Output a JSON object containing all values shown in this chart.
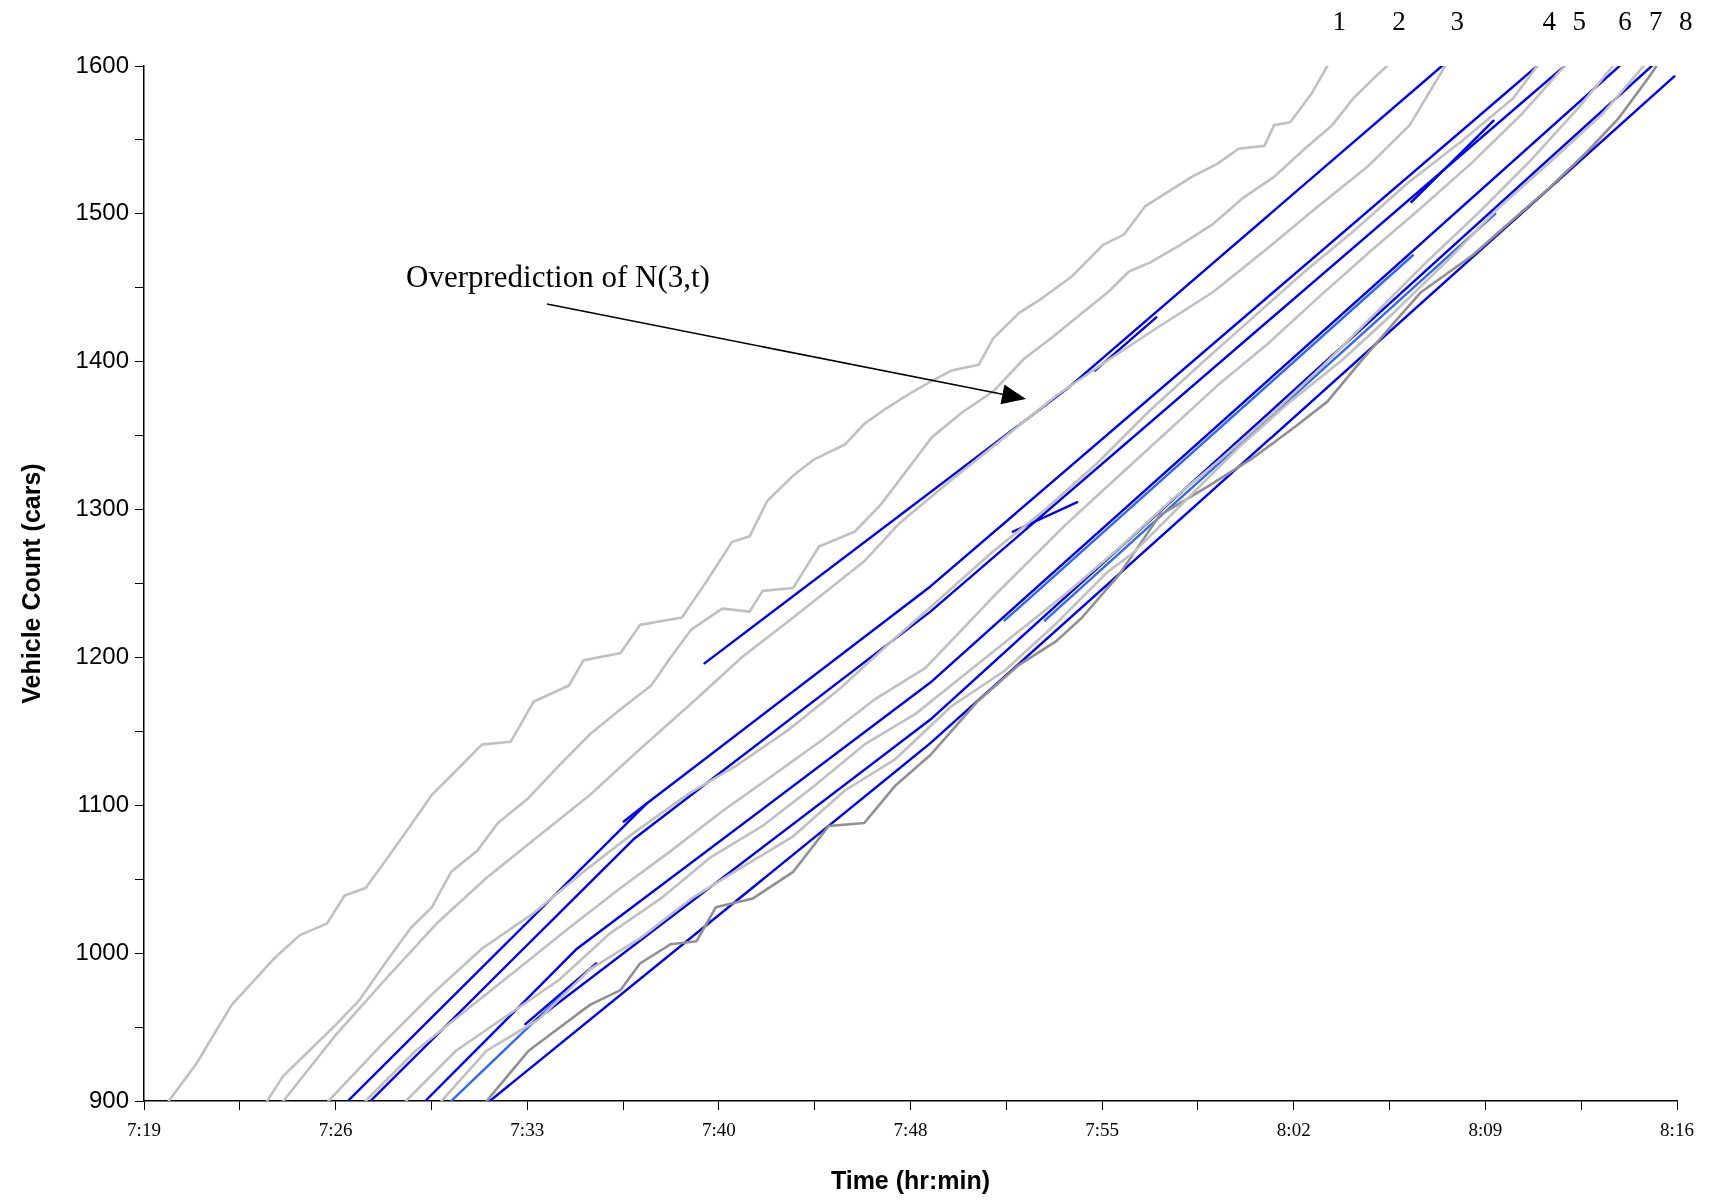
{
  "chart_data": {
    "type": "line",
    "xlabel": "Time (hr:min)",
    "ylabel": "Vehicle Count (cars)",
    "xlim": [
      7.31667,
      8.26667
    ],
    "xticks": [
      {
        "value": 7.31667,
        "label": "7:19"
      },
      {
        "value": 7.37604,
        "label": null
      },
      {
        "value": 7.43542,
        "label": "7:26"
      },
      {
        "value": 7.49479,
        "label": null
      },
      {
        "value": 7.55417,
        "label": "7:33"
      },
      {
        "value": 7.61354,
        "label": null
      },
      {
        "value": 7.67292,
        "label": "7:40"
      },
      {
        "value": 7.73229,
        "label": null
      },
      {
        "value": 7.79167,
        "label": "7:48"
      },
      {
        "value": 7.85104,
        "label": null
      },
      {
        "value": 7.91042,
        "label": "7:55"
      },
      {
        "value": 7.96979,
        "label": null
      },
      {
        "value": 8.02917,
        "label": "8:02"
      },
      {
        "value": 8.08854,
        "label": null
      },
      {
        "value": 8.14792,
        "label": "8:09"
      },
      {
        "value": 8.20729,
        "label": null
      },
      {
        "value": 8.26667,
        "label": "8:16"
      }
    ],
    "ylim": [
      900,
      1600
    ],
    "yticks": [
      900,
      {
        "value": 950,
        "label": null
      },
      1000,
      {
        "value": 1050,
        "label": null
      },
      1100,
      {
        "value": 1150,
        "label": null
      },
      1200,
      {
        "value": 1250,
        "label": null
      },
      1300,
      {
        "value": 1350,
        "label": null
      },
      1400,
      {
        "value": 1450,
        "label": null
      },
      1500,
      {
        "value": 1550,
        "label": null
      },
      1600
    ],
    "marker": "none",
    "annotations": [
      "Overprediction of N(3,t)"
    ],
    "series": [
      {
        "name": "1",
        "color": "#c0c0c0",
        "x": [
          7.332,
          7.349,
          7.371,
          7.397,
          7.413,
          7.43,
          7.441,
          7.454,
          7.466,
          7.479,
          7.495,
          7.507,
          7.526,
          7.544,
          7.558,
          7.58,
          7.589,
          7.612,
          7.624,
          7.65,
          7.665,
          7.681,
          7.692,
          7.703,
          7.719,
          7.732,
          7.751,
          7.763,
          7.776,
          7.792,
          7.805,
          7.817,
          7.834,
          7.843,
          7.859,
          7.872,
          7.892,
          7.911,
          7.924,
          7.937,
          7.95,
          7.966,
          7.982,
          7.995,
          8.011,
          8.017,
          8.027,
          8.04,
          8.05
        ],
        "values": [
          900,
          925,
          965,
          996,
          1012,
          1020,
          1039,
          1044,
          1062,
          1082,
          1107,
          1120,
          1141,
          1143,
          1170,
          1181,
          1198,
          1203,
          1222,
          1227,
          1251,
          1278,
          1282,
          1306,
          1323,
          1334,
          1344,
          1358,
          1368,
          1379,
          1387,
          1394,
          1398,
          1416,
          1433,
          1442,
          1458,
          1479,
          1486,
          1505,
          1514,
          1525,
          1534,
          1544,
          1546,
          1560,
          1562,
          1581,
          1600
        ]
      },
      {
        "name": "2",
        "color": "#c0c0c0",
        "x": [
          7.393,
          7.403,
          7.419,
          7.435,
          7.45,
          7.466,
          7.482,
          7.495,
          7.507,
          7.523,
          7.536,
          7.555,
          7.574,
          7.593,
          7.612,
          7.631,
          7.643,
          7.656,
          7.675,
          7.692,
          7.7,
          7.719,
          7.735,
          7.757,
          7.773,
          7.805,
          7.824,
          7.843,
          7.862,
          7.879,
          7.898,
          7.914,
          7.927,
          7.94,
          7.959,
          7.979,
          7.998,
          8.017,
          8.036,
          8.053,
          8.066,
          8.079,
          8.087
        ],
        "values": [
          900,
          917,
          934,
          951,
          968,
          993,
          1017,
          1031,
          1055,
          1069,
          1088,
          1105,
          1127,
          1148,
          1165,
          1181,
          1200,
          1219,
          1233,
          1231,
          1245,
          1247,
          1275,
          1285,
          1303,
          1349,
          1366,
          1380,
          1402,
          1416,
          1433,
          1447,
          1461,
          1467,
          1479,
          1493,
          1511,
          1525,
          1544,
          1560,
          1578,
          1592,
          1600
        ]
      },
      {
        "name": "3",
        "color": "#c0c0c0",
        "x": [
          7.403,
          7.435,
          7.466,
          7.498,
          7.529,
          7.561,
          7.593,
          7.624,
          7.656,
          7.687,
          7.719,
          7.763,
          7.785,
          7.817,
          7.85,
          7.882,
          7.914,
          7.946,
          7.979,
          8.011,
          8.043,
          8.075,
          8.101,
          8.123
        ],
        "values": [
          900,
          944,
          982,
          1020,
          1051,
          1079,
          1107,
          1138,
          1169,
          1200,
          1227,
          1265,
          1291,
          1320,
          1349,
          1377,
          1401,
          1424,
          1447,
          1475,
          1504,
          1532,
          1560,
          1600
        ]
      },
      {
        "name": "4",
        "color": "#c0c0c0",
        "x": [
          7.431,
          7.463,
          7.495,
          7.526,
          7.558,
          7.589,
          7.621,
          7.653,
          7.684,
          7.716,
          7.748,
          7.779,
          7.804,
          7.842,
          7.874,
          7.907,
          7.939,
          7.971,
          8.004,
          8.036,
          8.068,
          8.1,
          8.133,
          8.165,
          8.18
        ],
        "values": [
          900,
          937,
          972,
          1003,
          1027,
          1055,
          1082,
          1107,
          1127,
          1151,
          1179,
          1210,
          1234,
          1271,
          1299,
          1331,
          1366,
          1398,
          1430,
          1461,
          1490,
          1521,
          1549,
          1578,
          1600
        ]
      },
      {
        "name": "5",
        "color": "#c0c0c0",
        "x": [
          7.454,
          7.485,
          7.517,
          7.548,
          7.58,
          7.612,
          7.643,
          7.675,
          7.706,
          7.738,
          7.77,
          7.801,
          7.842,
          7.887,
          7.918,
          7.95,
          7.982,
          8.013,
          8.045,
          8.077,
          8.108,
          8.14,
          8.17,
          8.197
        ],
        "values": [
          900,
          934,
          962,
          989,
          1017,
          1044,
          1069,
          1096,
          1120,
          1145,
          1172,
          1193,
          1240,
          1289,
          1320,
          1352,
          1384,
          1412,
          1444,
          1475,
          1504,
          1535,
          1567,
          1600
        ]
      },
      {
        "name": "6",
        "color": "#c0c0c0",
        "x": [
          7.479,
          7.51,
          7.542,
          7.574,
          7.605,
          7.637,
          7.668,
          7.7,
          7.732,
          7.763,
          7.795,
          7.827,
          7.858,
          7.89,
          7.922,
          7.953,
          7.985,
          8.017,
          8.048,
          8.08,
          8.112,
          8.143,
          8.175,
          8.205,
          8.227
        ],
        "values": [
          900,
          934,
          958,
          982,
          1013,
          1037,
          1065,
          1086,
          1113,
          1141,
          1162,
          1190,
          1217,
          1245,
          1275,
          1306,
          1335,
          1366,
          1398,
          1433,
          1468,
          1500,
          1535,
          1571,
          1600
        ]
      },
      {
        "name": "7",
        "color": "#c0c0c0",
        "x": [
          7.501,
          7.529,
          7.561,
          7.593,
          7.624,
          7.656,
          7.687,
          7.719,
          7.751,
          7.782,
          7.817,
          7.85,
          7.882,
          7.914,
          7.93,
          7.962,
          7.995,
          8.027,
          8.059,
          8.091,
          8.124,
          8.156,
          8.188,
          8.22,
          8.246
        ],
        "values": [
          900,
          934,
          955,
          989,
          1010,
          1037,
          1058,
          1079,
          1110,
          1131,
          1167,
          1191,
          1223,
          1258,
          1271,
          1306,
          1342,
          1373,
          1401,
          1433,
          1468,
          1504,
          1535,
          1567,
          1600
        ]
      },
      {
        "name": "8",
        "color": "#909090",
        "x": [
          7.529,
          7.555,
          7.593,
          7.612,
          7.624,
          7.643,
          7.659,
          7.671,
          7.694,
          7.719,
          7.741,
          7.763,
          7.782,
          7.804,
          7.833,
          7.859,
          7.882,
          7.898,
          7.921,
          7.946,
          7.975,
          8.004,
          8.03,
          8.05,
          8.069,
          8.091,
          8.108,
          8.14,
          8.166,
          8.188,
          8.211,
          8.23,
          8.249,
          8.254
        ],
        "values": [
          900,
          934,
          965,
          975,
          993,
          1006,
          1008,
          1031,
          1037,
          1055,
          1086,
          1088,
          1113,
          1134,
          1170,
          1195,
          1211,
          1227,
          1256,
          1296,
          1315,
          1335,
          1356,
          1373,
          1398,
          1426,
          1447,
          1472,
          1497,
          1518,
          1542,
          1564,
          1592,
          1600
        ]
      },
      {
        "color": "#0000ee",
        "x": [
          7.664,
          7.889,
          8.121
        ],
        "values": [
          1196,
          1382,
          1600
        ]
      },
      {
        "color": "#0000ee",
        "x": [
          7.443,
          7.628,
          7.804,
          8.18
        ],
        "values": [
          900,
          1101,
          1248,
          1600
        ]
      },
      {
        "color": "#0000ee",
        "x": [
          7.457,
          7.62,
          7.804,
          8.197
        ],
        "values": [
          900,
          1077,
          1231,
          1600
        ]
      },
      {
        "color": "#0000ee",
        "x": [
          7.491,
          7.585,
          7.804,
          8.231
        ],
        "values": [
          900,
          1003,
          1183,
          1600
        ]
      },
      {
        "color": "#0000ee",
        "x": [
          7.555,
          7.804,
          8.251
        ],
        "values": [
          951,
          1158,
          1600
        ]
      },
      {
        "color": "#0000ee",
        "x": [
          7.531,
          7.804,
          8.265
        ],
        "values": [
          900,
          1142,
          1593
        ]
      },
      {
        "color": "#3366ff",
        "x": [
          7.507,
          7.577
        ],
        "values": [
          900,
          973
        ]
      },
      {
        "color": "#3366ff",
        "x": [
          7.85,
          8.103
        ],
        "values": [
          1225,
          1472
        ]
      },
      {
        "color": "#3366ff",
        "x": [
          7.875,
          8.154
        ],
        "values": [
          1225,
          1500
        ]
      },
      {
        "color": "#0000ee",
        "x": [
          7.906,
          7.944
        ],
        "values": [
          1394,
          1430
        ]
      },
      {
        "color": "#0000ee",
        "x": [
          8.102,
          8.153
        ],
        "values": [
          1508,
          1563
        ]
      },
      {
        "color": "#0000ee",
        "x": [
          7.855,
          7.895
        ],
        "values": [
          1285,
          1305
        ]
      },
      {
        "color": "#0000ee",
        "x": [
          7.614,
          7.628
        ],
        "values": [
          1089,
          1101
        ]
      },
      {
        "color": "#0000ee",
        "x": [
          7.553,
          7.597
        ],
        "values": [
          952,
          993
        ]
      }
    ]
  }
}
